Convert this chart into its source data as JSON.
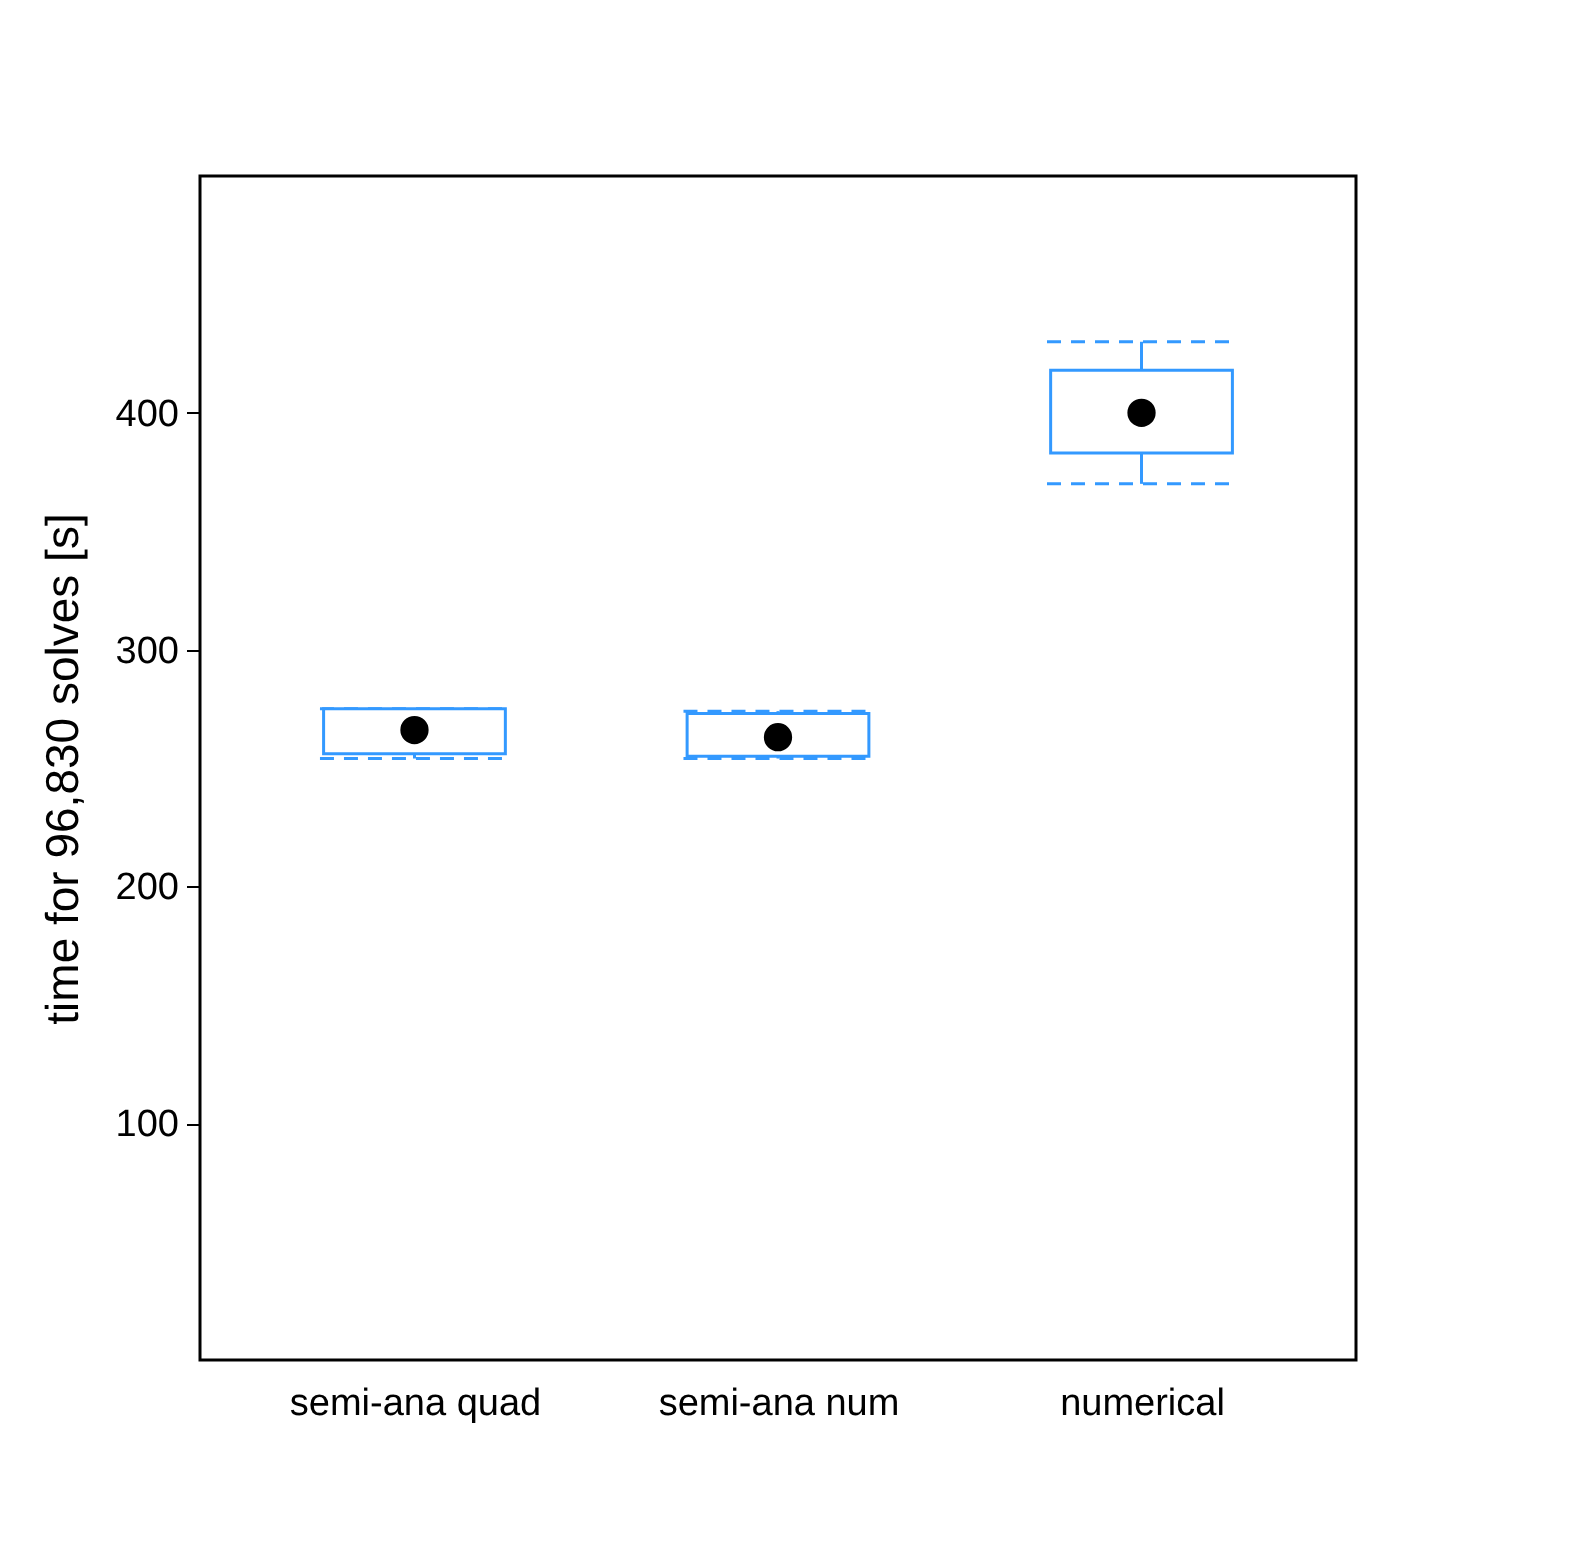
{
  "chart_data": {
    "type": "box",
    "ylabel": "time for 96,830 solves [s]",
    "categories": [
      "semi-ana quad",
      "semi-ana num",
      "numerical"
    ],
    "color": "#3399ff",
    "ylim": [
      0,
      500
    ],
    "yticks": [
      100,
      200,
      300,
      400
    ],
    "grid": false,
    "boxes": [
      {
        "low": 254,
        "q1": 256,
        "median": 266,
        "q3": 275,
        "high": 275
      },
      {
        "low": 254,
        "q1": 255,
        "median": 263,
        "q3": 273,
        "high": 274
      },
      {
        "low": 370,
        "q1": 383,
        "median": 400,
        "q3": 418,
        "high": 430
      }
    ]
  }
}
